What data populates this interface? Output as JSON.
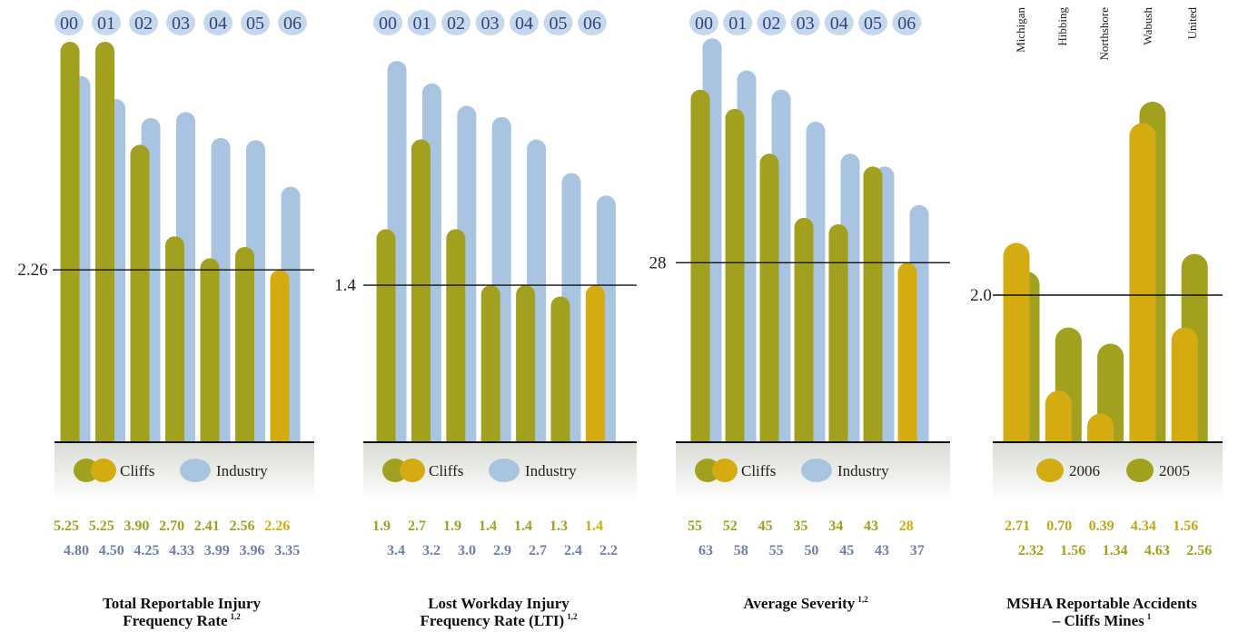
{
  "colors": {
    "cliffs_olive": "#a1a11f",
    "cliffs_gold": "#d4ac12",
    "industry": "#a9c4e1",
    "year_badge": "#c6d8ee",
    "year_text": "#33437a",
    "cliffs_text": "#a3a01d",
    "industry_text": "#6f7fab",
    "legend_text": "#222222"
  },
  "chart_data": [
    {
      "type": "bar",
      "title": "Total Reportable Injury Frequency Rate",
      "title_sup": "1,2",
      "categories": [
        "00",
        "01",
        "02",
        "03",
        "04",
        "05",
        "06"
      ],
      "reference_label": "2.26",
      "reference_value": 2.26,
      "ylim": [
        0,
        5.4
      ],
      "legend": [
        "Cliffs",
        "Industry"
      ],
      "series": [
        {
          "name": "Cliffs",
          "values": [
            5.25,
            5.25,
            3.9,
            2.7,
            2.41,
            2.56,
            2.26
          ],
          "labels": [
            "5.25",
            "5.25",
            "3.90",
            "2.70",
            "2.41",
            "2.56",
            "2.26"
          ]
        },
        {
          "name": "Industry",
          "values": [
            4.8,
            4.5,
            4.25,
            4.33,
            3.99,
            3.96,
            3.35
          ],
          "labels": [
            "4.80",
            "4.50",
            "4.25",
            "4.33",
            "3.99",
            "3.96",
            "3.35"
          ]
        }
      ]
    },
    {
      "type": "bar",
      "title": "Lost Workday Injury Frequency Rate (LTI)",
      "title_sup": "1,2",
      "categories": [
        "00",
        "01",
        "02",
        "03",
        "04",
        "05",
        "06"
      ],
      "reference_label": "1.4",
      "reference_value": 1.4,
      "ylim": [
        0,
        3.45
      ],
      "legend": [
        "Cliffs",
        "Industry"
      ],
      "series": [
        {
          "name": "Cliffs",
          "values": [
            1.9,
            2.7,
            1.9,
            1.4,
            1.4,
            1.3,
            1.4
          ],
          "labels": [
            "1.9",
            "2.7",
            "1.9",
            "1.4",
            "1.4",
            "1.3",
            "1.4"
          ]
        },
        {
          "name": "Industry",
          "values": [
            3.4,
            3.2,
            3.0,
            2.9,
            2.7,
            2.4,
            2.2
          ],
          "labels": [
            "3.4",
            "3.2",
            "3.0",
            "2.9",
            "2.7",
            "2.4",
            "2.2"
          ]
        }
      ]
    },
    {
      "type": "bar",
      "title": "Average Severity",
      "title_sup": "1,2",
      "categories": [
        "00",
        "01",
        "02",
        "03",
        "04",
        "05",
        "06"
      ],
      "reference_label": "28",
      "reference_value": 28,
      "ylim": [
        0,
        63
      ],
      "legend": [
        "Cliffs",
        "Industry"
      ],
      "series": [
        {
          "name": "Cliffs",
          "values": [
            55,
            52,
            45,
            35,
            34,
            43,
            28
          ],
          "labels": [
            "55",
            "52",
            "45",
            "35",
            "34",
            "43",
            "28"
          ]
        },
        {
          "name": "Industry",
          "values": [
            63,
            58,
            55,
            50,
            45,
            43,
            37
          ],
          "labels": [
            "63",
            "58",
            "55",
            "50",
            "45",
            "43",
            "37"
          ]
        }
      ]
    },
    {
      "type": "bar",
      "title": "MSHA Reportable Accidents – Cliffs Mines",
      "title_sup": "1",
      "categories": [
        "Michigan",
        "Hibbing",
        "Northshore",
        "Wabush",
        "United"
      ],
      "reference_label": "2.0",
      "reference_value": 2.0,
      "ylim": [
        0,
        4.85
      ],
      "legend": [
        "2006",
        "2005"
      ],
      "series": [
        {
          "name": "2006",
          "values": [
            2.71,
            0.7,
            0.39,
            4.34,
            1.56
          ],
          "labels": [
            "2.71",
            "0.70",
            "0.39",
            "4.34",
            "1.56"
          ]
        },
        {
          "name": "2005",
          "values": [
            2.32,
            1.56,
            1.34,
            4.63,
            2.56
          ],
          "labels": [
            "2.32",
            "1.56",
            "1.34",
            "4.63",
            "2.56"
          ]
        }
      ]
    }
  ]
}
